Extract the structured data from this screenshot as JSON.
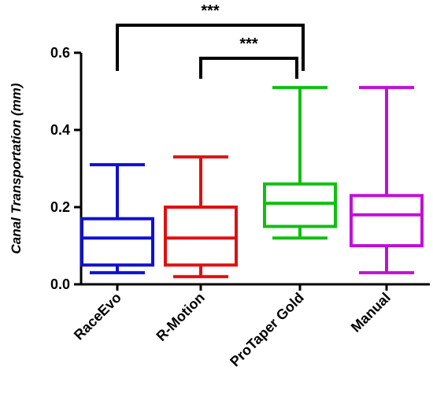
{
  "chart_data": {
    "type": "box",
    "ylabel": "Canal Transportation (mm)",
    "ylim": [
      0,
      0.6
    ],
    "yticks": [
      "0.0",
      "0.2",
      "0.4",
      "0.6"
    ],
    "categories": [
      "RaceEvo",
      "R-Motion",
      "ProTaper Gold",
      "Manual"
    ],
    "boxes": [
      {
        "category": "RaceEvo",
        "color": "#1010d0",
        "min": 0.03,
        "q1": 0.05,
        "median": 0.12,
        "q3": 0.17,
        "max": 0.31
      },
      {
        "category": "R-Motion",
        "color": "#e01010",
        "min": 0.02,
        "q1": 0.05,
        "median": 0.12,
        "q3": 0.2,
        "max": 0.33
      },
      {
        "category": "ProTaper Gold",
        "color": "#10c010",
        "min": 0.12,
        "q1": 0.15,
        "median": 0.21,
        "q3": 0.26,
        "max": 0.51
      },
      {
        "category": "Manual",
        "color": "#c010d8",
        "min": 0.03,
        "q1": 0.1,
        "median": 0.18,
        "q3": 0.23,
        "max": 0.51
      }
    ],
    "significance": [
      {
        "from": "RaceEvo",
        "to": "ProTaper Gold",
        "label": "***"
      },
      {
        "from": "R-Motion",
        "to": "ProTaper Gold",
        "label": "***"
      }
    ],
    "grid": false
  }
}
